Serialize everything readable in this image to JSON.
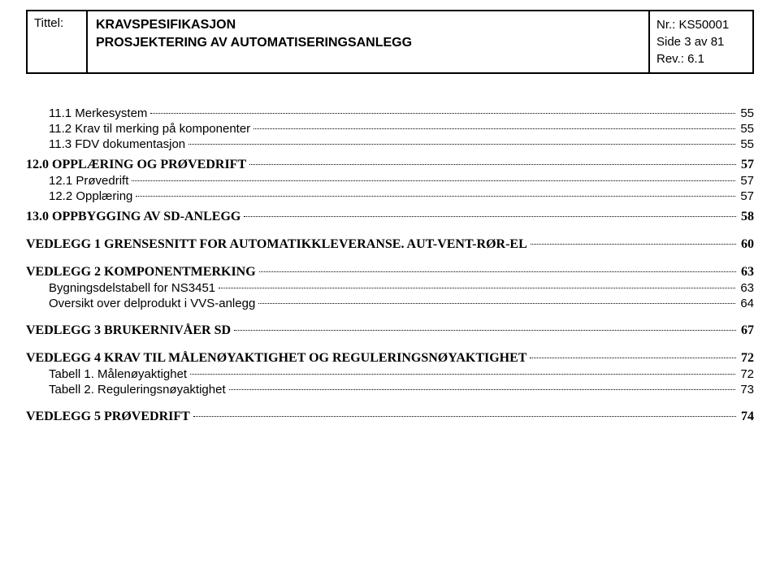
{
  "header": {
    "tittel_label": "Tittel:",
    "title_line1": "KRAVSPESIFIKASJON",
    "title_line2": "PROSJEKTERING AV AUTOMATISERINGSANLEGG",
    "nr": "Nr.: KS50001",
    "side": "Side 3 av 81",
    "rev": "Rev.: 6.1"
  },
  "toc": [
    {
      "label": "11.1 Merkesystem",
      "page": "55",
      "indent": true,
      "bold": false
    },
    {
      "label": "11.2 Krav til merking på komponenter",
      "page": "55",
      "indent": true,
      "bold": false
    },
    {
      "label": "11.3 FDV dokumentasjon",
      "page": "55",
      "indent": true,
      "bold": false
    },
    {
      "spacer": "sm"
    },
    {
      "label": "12.0 OPPLÆRING OG PRØVEDRIFT",
      "page": "57",
      "indent": false,
      "bold": true,
      "serif": true
    },
    {
      "label": "12.1 Prøvedrift",
      "page": "57",
      "indent": true,
      "bold": false
    },
    {
      "label": "12.2 Opplæring",
      "page": "57",
      "indent": true,
      "bold": false
    },
    {
      "spacer": "sm"
    },
    {
      "label": "13.0 OPPBYGGING AV SD-ANLEGG",
      "page": "58",
      "indent": false,
      "bold": true,
      "serif": true
    },
    {
      "spacer": "md"
    },
    {
      "label": "VEDLEGG 1 GRENSESNITT FOR AUTOMATIKKLEVERANSE. AUT-VENT-RØR-EL",
      "page": "60",
      "indent": false,
      "bold": true,
      "serif": true
    },
    {
      "spacer": "md"
    },
    {
      "label": "VEDLEGG 2 KOMPONENTMERKING",
      "page": "63",
      "indent": false,
      "bold": true,
      "serif": true
    },
    {
      "label": "Bygningsdelstabell for NS3451",
      "page": "63",
      "indent": true,
      "bold": false
    },
    {
      "label": "Oversikt over delprodukt i VVS-anlegg",
      "page": "64",
      "indent": true,
      "bold": false
    },
    {
      "spacer": "md"
    },
    {
      "label": "VEDLEGG 3 BRUKERNIVÅER SD",
      "page": "67",
      "indent": false,
      "bold": true,
      "serif": true
    },
    {
      "spacer": "md"
    },
    {
      "label": "VEDLEGG 4 KRAV TIL MÅLENØYAKTIGHET OG REGULERINGSNØYAKTIGHET",
      "page": "72",
      "indent": false,
      "bold": true,
      "serif": true
    },
    {
      "label": "Tabell 1. Målenøyaktighet",
      "page": "72",
      "indent": true,
      "bold": false
    },
    {
      "label": "Tabell 2. Reguleringsnøyaktighet",
      "page": "73",
      "indent": true,
      "bold": false
    },
    {
      "spacer": "md"
    },
    {
      "label": "VEDLEGG 5 PRØVEDRIFT",
      "page": "74",
      "indent": false,
      "bold": true,
      "serif": true
    }
  ]
}
